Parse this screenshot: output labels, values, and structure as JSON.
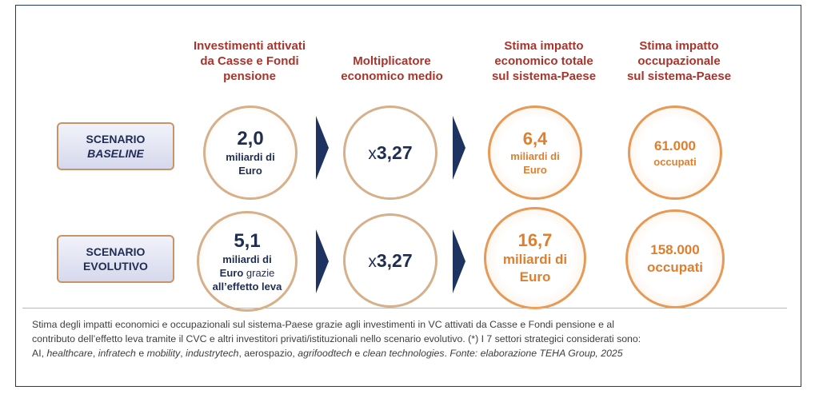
{
  "columns": {
    "investimenti": [
      "Investimenti attivati",
      "da Casse e Fondi",
      "pensione"
    ],
    "moltiplicatore": [
      "Moltiplicatore",
      "economico medio"
    ],
    "impatto_economico": [
      "Stima impatto",
      "economico totale",
      "sul sistema-Paese"
    ],
    "impatto_occupazionale": [
      "Stima impatto",
      "occupazionale",
      "sul sistema-Paese"
    ]
  },
  "scenarios": {
    "baseline": {
      "label_1": "SCENARIO",
      "label_2": "BASELINE",
      "investimento_value": "2,0",
      "investimento_unit_1": "miliardi di",
      "investimento_unit_2": "Euro",
      "multiplier_prefix": "x",
      "multiplier_value": "3,27",
      "impatto_value": "6,4",
      "impatto_unit_1": "miliardi di",
      "impatto_unit_2": "Euro",
      "occupati_value": "61.000",
      "occupati_unit": "occupati"
    },
    "evolutivo": {
      "label_1": "SCENARIO",
      "label_2": "EVOLUTIVO",
      "investimento_value": "5,1",
      "investimento_unit_1": "miliardi di",
      "investimento_unit_2a": "Euro",
      "investimento_unit_2b": " grazie",
      "investimento_unit_3": "all’effetto leva",
      "multiplier_prefix": "x",
      "multiplier_value": "3,27",
      "impatto_value": "16,7",
      "impatto_unit_1": "miliardi di",
      "impatto_unit_2": "Euro",
      "occupati_value": "158.000",
      "occupati_unit": "occupati"
    }
  },
  "caption": {
    "line1": "Stima degli impatti economici e occupazionali sul sistema-Paese grazie agli investimenti in VC attivati da Casse e Fondi pensione e al",
    "line2": "contributo dell’effetto leva tramite il CVC e altri investitori privati/istituzionali nello scenario evolutivo. (*) I 7 settori strategici considerati sono:",
    "line3": {
      "t1": "AI, ",
      "t2": "healthcare",
      "t3": ", ",
      "t4": "infratech",
      "t5": " e ",
      "t6": "mobility",
      "t7": ", ",
      "t8": "industrytech",
      "t9": ", aerospazio, ",
      "t10": "agrifoodtech",
      "t11": " e ",
      "t12": "clean technologies",
      "t13": ". ",
      "t14": "Fonte: elaborazione TEHA Group, 2025"
    }
  },
  "colors": {
    "heading": "#a9342b",
    "navy": "#1f2d52",
    "orange": "#df7f2d",
    "border_navy": "#1f3a6b"
  }
}
